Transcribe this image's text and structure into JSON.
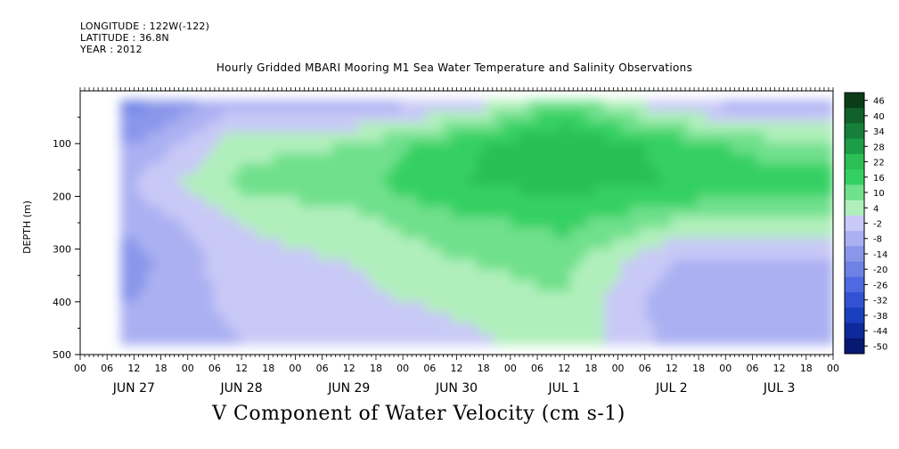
{
  "header": {
    "longitude": "LONGITUDE : 122W(-122)",
    "latitude": "LATITUDE : 36.8N",
    "year": "YEAR : 2012"
  },
  "title": "Hourly Gridded MBARI Mooring M1 Sea Water Temperature and Salinity Observations",
  "bottom_label": "V Component of Water Velocity (cm s-1)",
  "chart_data": {
    "type": "heatmap",
    "title": "Hourly Gridded MBARI Mooring M1 Sea Water Temperature and Salinity Observations",
    "xlabel": "",
    "ylabel": "DEPTH (m)",
    "ylim": [
      500,
      0
    ],
    "y_ticks": [
      "100",
      "200",
      "300",
      "400",
      "500"
    ],
    "x_hour_ticks": [
      "00",
      "06",
      "12",
      "18",
      "00",
      "06",
      "12",
      "18",
      "00",
      "06",
      "12",
      "18",
      "00",
      "06",
      "12",
      "18",
      "00",
      "06",
      "12",
      "18",
      "00",
      "06",
      "12",
      "18",
      "00",
      "06",
      "12",
      "18",
      "00"
    ],
    "x_day_labels": [
      "JUN 27",
      "JUN 28",
      "JUN 29",
      "JUN 30",
      "JUL  1",
      "JUL  2",
      "JUL  3"
    ],
    "data_depth_range": [
      18,
      480
    ],
    "data_time_start_hour": 9,
    "colorbar": {
      "levels": [
        "46",
        "40",
        "34",
        "28",
        "22",
        "16",
        "10",
        "4",
        "-2",
        "-8",
        "-14",
        "-20",
        "-26",
        "-32",
        "-38",
        "-44",
        "-50"
      ],
      "colors": [
        "#0a3d17",
        "#11612a",
        "#16803a",
        "#1b9e45",
        "#2bbf55",
        "#35d064",
        "#6fe08c",
        "#b0efbb",
        "#c9c9f7",
        "#aab0f2",
        "#8996ea",
        "#6e82e6",
        "#4e6ae0",
        "#3252d3",
        "#1a3fbe",
        "#0e2a9a",
        "#061872"
      ]
    },
    "day_columns": [
      {
        "day": "JUN 27",
        "v": [
          -22,
          -14,
          -8,
          -12,
          -16,
          -14,
          -12
        ]
      },
      {
        "day": "JUN 28",
        "v": [
          -8,
          2,
          6,
          -2,
          -4,
          -6,
          -8
        ]
      },
      {
        "day": "JUN 29",
        "v": [
          -10,
          4,
          8,
          2,
          -2,
          -4,
          -8
        ]
      },
      {
        "day": "JUN 30",
        "v": [
          -6,
          14,
          16,
          8,
          4,
          0,
          -4
        ]
      },
      {
        "day": "JUL  1",
        "v": [
          10,
          22,
          18,
          12,
          6,
          4,
          2
        ]
      },
      {
        "day": "JUL  2",
        "v": [
          -6,
          14,
          16,
          4,
          -8,
          -12,
          -10
        ]
      },
      {
        "day": "JUL  3",
        "v": [
          -10,
          6,
          14,
          2,
          -10,
          -14,
          -12
        ]
      }
    ]
  }
}
